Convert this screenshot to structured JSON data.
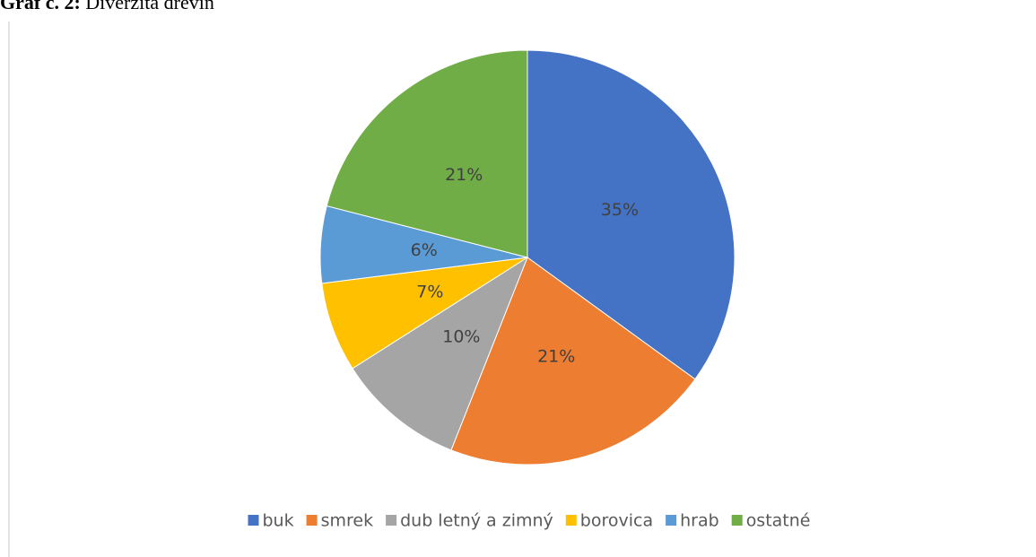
{
  "chart_data": {
    "type": "pie",
    "caption_number": "Graf č. 2:",
    "title": "Diverzita drevín",
    "categories": [
      "buk",
      "smrek",
      "dub letný a zimný",
      "borovica",
      "hrab",
      "ostatné"
    ],
    "values": [
      35,
      21,
      10,
      7,
      6,
      21
    ],
    "value_labels": [
      "35%",
      "21%",
      "10%",
      "7%",
      "6%",
      "21%"
    ],
    "colors": [
      "#4472c4",
      "#ed7d31",
      "#a5a5a5",
      "#ffc000",
      "#5b9bd5",
      "#70ad47"
    ],
    "legend": "bottom"
  }
}
